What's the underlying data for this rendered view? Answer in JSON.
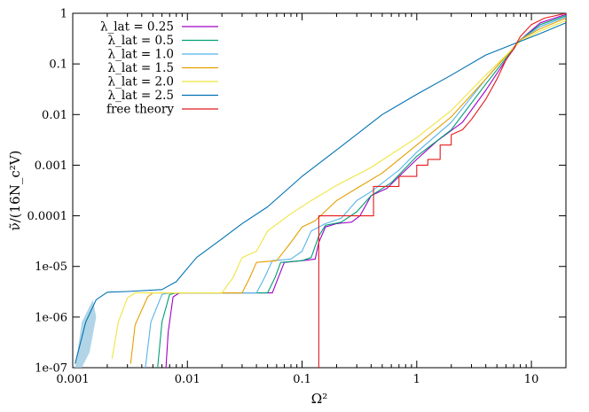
{
  "chart_data": {
    "type": "line",
    "xlabel": "Ω²",
    "ylabel": "ν̃/(16N_c²V)",
    "xscale": "log",
    "yscale": "log",
    "xlim": [
      0.001,
      20
    ],
    "ylim": [
      1e-07,
      1
    ],
    "x_ticks": [
      {
        "value": 0.001,
        "label": "0.001"
      },
      {
        "value": 0.01,
        "label": "0.01"
      },
      {
        "value": 0.1,
        "label": "0.1"
      },
      {
        "value": 1,
        "label": "1"
      },
      {
        "value": 10,
        "label": "10"
      }
    ],
    "y_ticks": [
      {
        "value": 1e-07,
        "label": "1e-07"
      },
      {
        "value": 1e-06,
        "label": "1e-06"
      },
      {
        "value": 1e-05,
        "label": "1e-05"
      },
      {
        "value": 0.0001,
        "label": "0.0001"
      },
      {
        "value": 0.001,
        "label": "0.001"
      },
      {
        "value": 0.01,
        "label": "0.01"
      },
      {
        "value": 0.1,
        "label": "0.1"
      },
      {
        "value": 1,
        "label": "1"
      }
    ],
    "legend_position": "top-left",
    "series": [
      {
        "name": "λ_lat = 0.25",
        "color": "#a000c8",
        "points": [
          [
            0.0065,
            1e-07
          ],
          [
            0.0068,
            5e-07
          ],
          [
            0.0075,
            2.5e-06
          ],
          [
            0.0085,
            3e-06
          ],
          [
            0.055,
            3e-06
          ],
          [
            0.06,
            5e-06
          ],
          [
            0.07,
            1.2e-05
          ],
          [
            0.1,
            1.3e-05
          ],
          [
            0.13,
            1.4e-05
          ],
          [
            0.14,
            3e-05
          ],
          [
            0.16,
            6e-05
          ],
          [
            0.2,
            7e-05
          ],
          [
            0.27,
            7.5e-05
          ],
          [
            0.32,
            0.0001
          ],
          [
            0.4,
            0.00025
          ],
          [
            0.55,
            0.00035
          ],
          [
            0.7,
            0.0006
          ],
          [
            1.0,
            0.0013
          ],
          [
            1.5,
            0.003
          ],
          [
            2.5,
            0.007
          ],
          [
            4,
            0.03
          ],
          [
            6,
            0.12
          ],
          [
            8,
            0.3
          ],
          [
            12,
            0.65
          ],
          [
            20,
            0.95
          ]
        ]
      },
      {
        "name": "λ_lat = 0.5",
        "color": "#009e73",
        "points": [
          [
            0.0055,
            1e-07
          ],
          [
            0.006,
            8e-07
          ],
          [
            0.007,
            2.8e-06
          ],
          [
            0.008,
            3e-06
          ],
          [
            0.05,
            3e-06
          ],
          [
            0.058,
            6e-06
          ],
          [
            0.065,
            1.2e-05
          ],
          [
            0.1,
            1.3e-05
          ],
          [
            0.12,
            1.5e-05
          ],
          [
            0.14,
            4e-05
          ],
          [
            0.16,
            6.5e-05
          ],
          [
            0.22,
            7.5e-05
          ],
          [
            0.3,
            0.00012
          ],
          [
            0.4,
            0.00025
          ],
          [
            0.6,
            0.00045
          ],
          [
            1.0,
            0.0015
          ],
          [
            2,
            0.005
          ],
          [
            4,
            0.04
          ],
          [
            8,
            0.3
          ],
          [
            12,
            0.6
          ],
          [
            20,
            0.9
          ]
        ]
      },
      {
        "name": "λ_lat = 1.0",
        "color": "#56b4e9",
        "points": [
          [
            0.0043,
            1e-07
          ],
          [
            0.0048,
            8e-07
          ],
          [
            0.006,
            2.8e-06
          ],
          [
            0.007,
            3e-06
          ],
          [
            0.04,
            3e-06
          ],
          [
            0.047,
            6e-06
          ],
          [
            0.055,
            1.3e-05
          ],
          [
            0.08,
            1.4e-05
          ],
          [
            0.1,
            2e-05
          ],
          [
            0.12,
            5e-05
          ],
          [
            0.16,
            7e-05
          ],
          [
            0.22,
            9e-05
          ],
          [
            0.3,
            0.0002
          ],
          [
            0.4,
            0.0003
          ],
          [
            0.7,
            0.0008
          ],
          [
            1.0,
            0.0018
          ],
          [
            2,
            0.007
          ],
          [
            4,
            0.05
          ],
          [
            8,
            0.3
          ],
          [
            12,
            0.55
          ],
          [
            20,
            0.85
          ]
        ]
      },
      {
        "name": "λ_lat = 1.5",
        "color": "#e69f00",
        "points": [
          [
            0.0032,
            1.2e-07
          ],
          [
            0.0035,
            7e-07
          ],
          [
            0.0045,
            2.5e-06
          ],
          [
            0.005,
            3e-06
          ],
          [
            0.03,
            3e-06
          ],
          [
            0.035,
            6e-06
          ],
          [
            0.04,
            1.2e-05
          ],
          [
            0.06,
            1.3e-05
          ],
          [
            0.08,
            3e-05
          ],
          [
            0.1,
            6e-05
          ],
          [
            0.13,
            8e-05
          ],
          [
            0.2,
            0.0002
          ],
          [
            0.3,
            0.00035
          ],
          [
            0.5,
            0.0007
          ],
          [
            1.0,
            0.0025
          ],
          [
            2,
            0.009
          ],
          [
            4,
            0.05
          ],
          [
            8,
            0.3
          ],
          [
            12,
            0.5
          ],
          [
            20,
            0.8
          ]
        ]
      },
      {
        "name": "λ_lat = 2.0",
        "color": "#f0e442",
        "points": [
          [
            0.0022,
            1.5e-07
          ],
          [
            0.0025,
            8e-07
          ],
          [
            0.003,
            2.4e-06
          ],
          [
            0.0035,
            3e-06
          ],
          [
            0.02,
            3e-06
          ],
          [
            0.025,
            6e-06
          ],
          [
            0.03,
            1.5e-05
          ],
          [
            0.04,
            2e-05
          ],
          [
            0.05,
            5e-05
          ],
          [
            0.08,
            0.00011
          ],
          [
            0.12,
            0.0002
          ],
          [
            0.2,
            0.0004
          ],
          [
            0.4,
            0.0009
          ],
          [
            1.0,
            0.0035
          ],
          [
            2,
            0.012
          ],
          [
            4,
            0.06
          ],
          [
            8,
            0.28
          ],
          [
            12,
            0.45
          ],
          [
            20,
            0.72
          ]
        ]
      },
      {
        "name": "λ_lat = 2.5",
        "color": "#0072b2",
        "points": [
          [
            0.00105,
            1.2e-07
          ],
          [
            0.0013,
            8e-07
          ],
          [
            0.0016,
            2.2e-06
          ],
          [
            0.002,
            3.1e-06
          ],
          [
            0.003,
            3.2e-06
          ],
          [
            0.006,
            3.5e-06
          ],
          [
            0.008,
            5e-06
          ],
          [
            0.012,
            1.5e-05
          ],
          [
            0.02,
            3.5e-05
          ],
          [
            0.03,
            7e-05
          ],
          [
            0.05,
            0.00015
          ],
          [
            0.1,
            0.0006
          ],
          [
            0.2,
            0.002
          ],
          [
            0.5,
            0.01
          ],
          [
            1.0,
            0.025
          ],
          [
            2,
            0.06
          ],
          [
            4,
            0.15
          ],
          [
            8,
            0.28
          ],
          [
            12,
            0.4
          ],
          [
            20,
            0.65
          ]
        ]
      },
      {
        "name": "free theory",
        "color": "#e41a1c",
        "points": [
          [
            0.14,
            1e-07
          ],
          [
            0.14,
            0.0001
          ],
          [
            0.42,
            0.0001
          ],
          [
            0.42,
            0.0002
          ],
          [
            0.42,
            0.00038
          ],
          [
            0.7,
            0.00038
          ],
          [
            0.7,
            0.0006
          ],
          [
            1.0,
            0.0006
          ],
          [
            1.0,
            0.001
          ],
          [
            1.25,
            0.001
          ],
          [
            1.25,
            0.0013
          ],
          [
            1.6,
            0.0013
          ],
          [
            1.6,
            0.0025
          ],
          [
            2,
            0.0025
          ],
          [
            2,
            0.004
          ],
          [
            2.5,
            0.005
          ],
          [
            3,
            0.008
          ],
          [
            4,
            0.02
          ],
          [
            5,
            0.05
          ],
          [
            6,
            0.12
          ],
          [
            7,
            0.2
          ],
          [
            8,
            0.35
          ],
          [
            10,
            0.6
          ],
          [
            13,
            0.8
          ],
          [
            20,
            1.0
          ]
        ]
      }
    ]
  }
}
